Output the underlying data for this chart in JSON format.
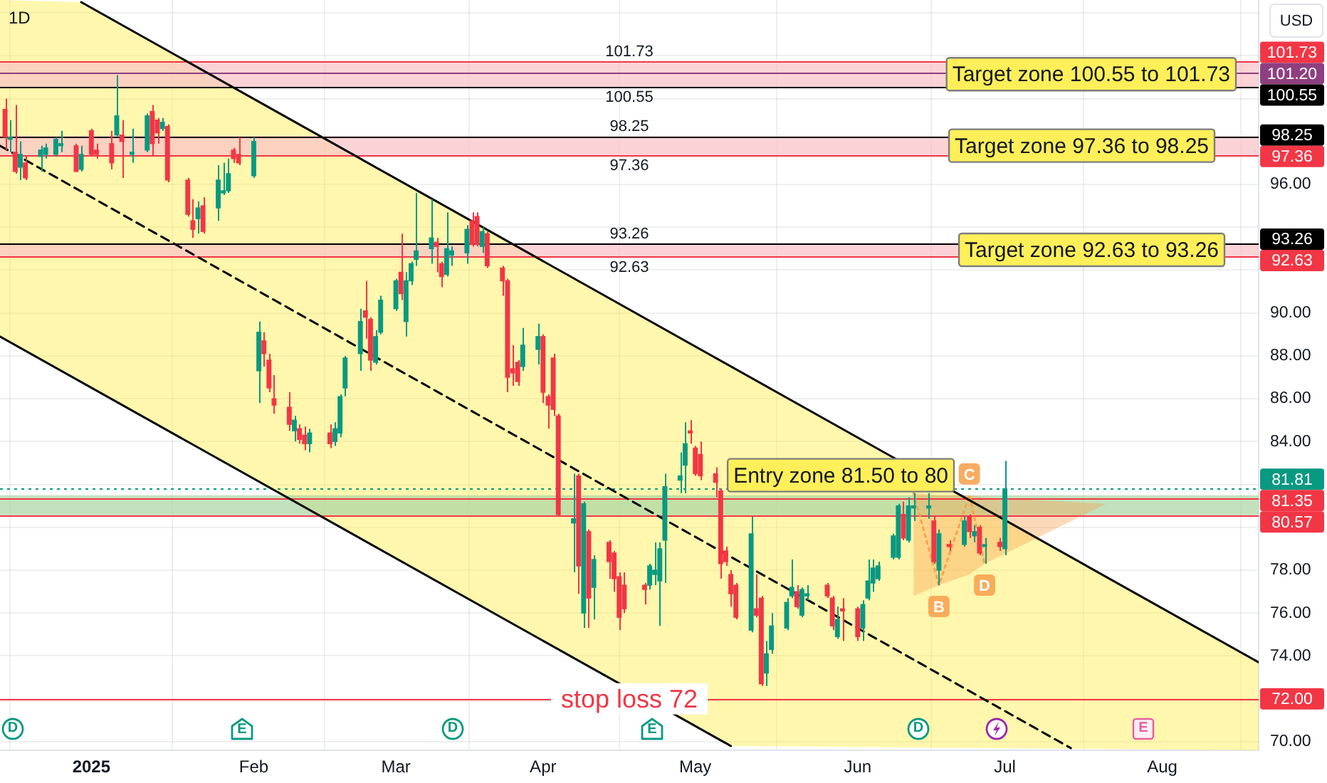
{
  "chart_data": {
    "type": "candlestick",
    "title": "1D",
    "ylabel": "USD",
    "x": [
      "2024-12-16",
      "2024-12-17",
      "2024-12-18",
      "2024-12-19",
      "2024-12-20",
      "2024-12-23",
      "2024-12-24",
      "2024-12-26",
      "2024-12-27",
      "2024-12-30",
      "2024-12-31",
      "2025-01-02",
      "2025-01-03",
      "2025-01-06",
      "2025-01-07",
      "2025-01-08",
      "2025-01-10",
      "2025-01-13",
      "2025-01-14",
      "2025-01-15",
      "2025-01-16",
      "2025-01-17",
      "2025-01-21",
      "2025-01-22",
      "2025-01-23",
      "2025-01-24",
      "2025-01-27",
      "2025-01-28",
      "2025-01-29",
      "2025-01-30",
      "2025-01-31",
      "2025-02-03",
      "2025-02-04",
      "2025-02-05",
      "2025-02-06",
      "2025-02-07",
      "2025-02-10",
      "2025-02-11",
      "2025-02-12",
      "2025-02-13",
      "2025-02-14",
      "2025-02-18",
      "2025-02-19",
      "2025-02-20",
      "2025-02-21",
      "2025-02-24",
      "2025-02-25",
      "2025-02-26",
      "2025-02-27",
      "2025-02-28",
      "2025-03-03",
      "2025-03-04",
      "2025-03-05",
      "2025-03-06",
      "2025-03-07",
      "2025-03-10",
      "2025-03-11",
      "2025-03-12",
      "2025-03-13",
      "2025-03-14",
      "2025-03-17",
      "2025-03-18",
      "2025-03-19",
      "2025-03-20",
      "2025-03-21",
      "2025-03-24",
      "2025-03-25",
      "2025-03-26",
      "2025-03-27",
      "2025-03-28",
      "2025-03-31",
      "2025-04-01",
      "2025-04-02",
      "2025-04-03",
      "2025-04-04",
      "2025-04-07",
      "2025-04-08",
      "2025-04-09",
      "2025-04-10",
      "2025-04-11",
      "2025-04-14",
      "2025-04-15",
      "2025-04-16",
      "2025-04-17",
      "2025-04-21",
      "2025-04-22",
      "2025-04-23",
      "2025-04-24",
      "2025-04-25",
      "2025-04-28",
      "2025-04-29",
      "2025-04-30",
      "2025-05-01",
      "2025-05-02",
      "2025-05-05",
      "2025-05-06",
      "2025-05-07",
      "2025-05-08",
      "2025-05-09",
      "2025-05-12",
      "2025-05-13",
      "2025-05-14",
      "2025-05-15",
      "2025-05-16",
      "2025-05-19",
      "2025-05-20",
      "2025-05-21",
      "2025-05-22",
      "2025-05-23",
      "2025-05-27",
      "2025-05-28",
      "2025-05-29",
      "2025-05-30",
      "2025-06-02",
      "2025-06-03",
      "2025-06-04",
      "2025-06-05",
      "2025-06-06",
      "2025-06-09",
      "2025-06-10",
      "2025-06-11",
      "2025-06-12",
      "2025-06-13",
      "2025-06-16",
      "2025-06-17",
      "2025-06-18",
      "2025-06-20",
      "2025-06-23",
      "2025-06-24",
      "2025-06-25",
      "2025-06-26",
      "2025-06-27",
      "2025-06-30",
      "2025-07-01"
    ],
    "ohlc": [
      [
        99.5,
        100.0,
        97.6,
        98.2
      ],
      [
        98.1,
        99.0,
        97.5,
        98.2
      ],
      [
        97.5,
        99.7,
        96.5,
        96.6
      ],
      [
        96.8,
        98.0,
        96.2,
        97.4
      ],
      [
        97.0,
        97.3,
        96.2,
        96.3
      ],
      [
        97.3,
        97.8,
        96.6,
        97.6
      ],
      [
        97.4,
        97.9,
        97.2,
        97.7
      ],
      [
        97.4,
        98.2,
        97.3,
        98.1
      ],
      [
        97.8,
        98.5,
        97.5,
        97.9
      ],
      [
        97.8,
        97.9,
        96.6,
        96.6
      ],
      [
        96.7,
        97.8,
        96.6,
        97.4
      ],
      [
        98.5,
        98.6,
        97.3,
        97.4
      ],
      [
        97.6,
        97.9,
        97.2,
        97.4
      ],
      [
        97.9,
        98.5,
        96.7,
        97.0
      ],
      [
        98.3,
        101.1,
        98.2,
        99.2
      ],
      [
        98.3,
        99.0,
        96.3,
        98.0
      ],
      [
        97.4,
        98.6,
        97.0,
        97.5
      ],
      [
        97.6,
        99.3,
        97.5,
        99.2
      ],
      [
        99.4,
        99.7,
        97.3,
        97.9
      ],
      [
        99.0,
        99.1,
        97.9,
        98.4
      ],
      [
        98.6,
        99.1,
        98.5,
        98.9
      ],
      [
        98.7,
        98.8,
        96.1,
        96.2
      ],
      [
        96.2,
        96.3,
        94.5,
        94.6
      ],
      [
        94.3,
        95.3,
        93.5,
        93.9
      ],
      [
        94.4,
        95.2,
        93.7,
        94.9
      ],
      [
        95.0,
        95.4,
        93.7,
        93.8
      ],
      [
        94.9,
        96.9,
        94.3,
        96.2
      ],
      [
        95.6,
        97.0,
        95.5,
        95.7
      ],
      [
        95.7,
        97.2,
        95.6,
        96.5
      ],
      [
        97.6,
        97.7,
        97.0,
        97.2
      ],
      [
        97.4,
        98.2,
        96.9,
        97.0
      ],
      [
        96.4,
        98.2,
        96.3,
        98.0
      ],
      [
        87.3,
        89.6,
        85.8,
        89.1
      ],
      [
        88.7,
        89.1,
        87.5,
        88.1
      ],
      [
        87.8,
        88.1,
        86.3,
        86.5
      ],
      [
        86.0,
        87.1,
        85.3,
        85.7
      ],
      [
        85.6,
        86.3,
        84.5,
        84.8
      ],
      [
        84.5,
        85.2,
        84.0,
        85.0
      ],
      [
        84.6,
        84.8,
        83.9,
        84.1
      ],
      [
        84.3,
        84.7,
        83.6,
        83.9
      ],
      [
        83.9,
        84.6,
        83.5,
        84.4
      ],
      [
        84.4,
        84.8,
        83.7,
        83.9
      ],
      [
        84.0,
        84.9,
        83.8,
        84.6
      ],
      [
        84.4,
        86.2,
        84.2,
        86.1
      ],
      [
        86.5,
        88.0,
        86.1,
        87.9
      ],
      [
        88.1,
        90.2,
        87.3,
        89.6
      ],
      [
        90.1,
        91.5,
        88.8,
        89.8
      ],
      [
        89.7,
        89.8,
        87.3,
        87.8
      ],
      [
        87.7,
        89.2,
        87.6,
        88.9
      ],
      [
        89.1,
        90.8,
        89.0,
        90.6
      ],
      [
        90.2,
        91.6,
        90.1,
        91.5
      ],
      [
        91.9,
        93.7,
        90.6,
        90.9
      ],
      [
        89.6,
        91.9,
        88.9,
        91.5
      ],
      [
        91.5,
        92.4,
        91.3,
        92.3
      ],
      [
        92.5,
        95.6,
        92.2,
        92.9
      ],
      [
        93.0,
        95.3,
        92.3,
        93.5
      ],
      [
        93.3,
        93.5,
        91.9,
        93.1
      ],
      [
        92.3,
        92.4,
        91.2,
        91.7
      ],
      [
        91.8,
        94.7,
        91.7,
        93.0
      ],
      [
        92.7,
        93.1,
        92.2,
        92.9
      ],
      [
        92.8,
        94.1,
        92.3,
        93.9
      ],
      [
        94.3,
        94.7,
        93.1,
        93.2
      ],
      [
        94.5,
        94.7,
        93.1,
        93.2
      ],
      [
        93.1,
        94.0,
        92.8,
        93.8
      ],
      [
        93.7,
        93.8,
        92.1,
        92.2
      ],
      [
        92.1,
        92.2,
        90.8,
        91.5
      ],
      [
        91.5,
        91.6,
        86.3,
        87.0
      ],
      [
        87.4,
        88.5,
        86.6,
        87.2
      ],
      [
        87.7,
        87.8,
        86.6,
        86.8
      ],
      [
        87.5,
        89.3,
        87.3,
        88.5
      ],
      [
        88.3,
        89.5,
        87.6,
        88.9
      ],
      [
        88.9,
        89.0,
        85.8,
        86.3
      ],
      [
        86.1,
        86.2,
        84.6,
        85.7
      ],
      [
        87.9,
        88.1,
        85.2,
        85.5
      ],
      [
        85.2,
        85.3,
        80.5,
        80.6
      ],
      [
        80.2,
        82.5,
        77.9,
        80.4
      ],
      [
        82.4,
        82.5,
        76.9,
        78.2
      ],
      [
        76.0,
        81.2,
        75.3,
        81.1
      ],
      [
        79.8,
        79.9,
        75.3,
        76.7
      ],
      [
        77.2,
        78.7,
        75.7,
        78.5
      ],
      [
        79.3,
        79.4,
        77.6,
        78.4
      ],
      [
        78.8,
        78.9,
        77.0,
        77.6
      ],
      [
        77.7,
        77.9,
        75.2,
        75.8
      ],
      [
        77.3,
        77.9,
        76.0,
        76.2
      ],
      [
        77.3,
        77.4,
        76.4,
        77.1
      ],
      [
        77.3,
        78.3,
        77.1,
        78.2
      ],
      [
        77.8,
        79.3,
        77.3,
        78.0
      ],
      [
        77.5,
        79.3,
        75.4,
        79.0
      ],
      [
        79.4,
        82.5,
        77.4,
        81.9
      ],
      [
        82.2,
        83.5,
        81.6,
        82.4
      ],
      [
        82.9,
        84.9,
        81.6,
        83.9
      ],
      [
        84.5,
        85.0,
        83.9,
        84.4
      ],
      [
        83.7,
        83.8,
        82.4,
        82.5
      ],
      [
        83.4,
        84.0,
        82.2,
        82.4
      ],
      [
        82.5,
        82.8,
        81.4,
        82.1
      ],
      [
        81.7,
        81.8,
        77.6,
        78.3
      ],
      [
        78.9,
        79.1,
        78.2,
        78.4
      ],
      [
        77.8,
        78.0,
        76.3,
        76.9
      ],
      [
        77.3,
        77.4,
        75.7,
        75.8
      ],
      [
        75.2,
        80.5,
        75.1,
        79.7
      ],
      [
        76.2,
        77.8,
        75.8,
        75.9
      ],
      [
        76.7,
        76.8,
        72.6,
        72.7
      ],
      [
        73.2,
        74.7,
        72.6,
        74.1
      ],
      [
        74.3,
        76.0,
        74.1,
        75.4
      ],
      [
        75.3,
        76.7,
        75.2,
        76.5
      ],
      [
        76.8,
        78.5,
        76.7,
        77.2
      ],
      [
        77.0,
        77.3,
        76.2,
        76.3
      ],
      [
        75.9,
        77.2,
        75.8,
        77.1
      ],
      [
        76.8,
        77.3,
        76.6,
        76.9
      ],
      [
        77.3,
        77.4,
        76.7,
        76.8
      ],
      [
        76.7,
        76.8,
        75.2,
        75.4
      ],
      [
        74.9,
        76.3,
        74.8,
        75.7
      ],
      [
        76.2,
        76.7,
        74.7,
        76.1
      ],
      [
        76.2,
        76.3,
        74.7,
        74.9
      ],
      [
        75.3,
        76.6,
        74.7,
        76.4
      ],
      [
        76.7,
        78.5,
        76.6,
        77.5
      ],
      [
        77.4,
        78.5,
        77.0,
        78.1
      ],
      [
        77.6,
        78.4,
        77.5,
        78.2
      ],
      [
        78.6,
        79.7,
        78.5,
        79.6
      ],
      [
        78.6,
        81.1,
        78.5,
        81.0
      ],
      [
        80.6,
        81.2,
        79.4,
        79.5
      ],
      [
        79.4,
        81.4,
        79.3,
        81.0
      ],
      [
        80.9,
        81.6,
        80.3,
        81.0
      ],
      [
        80.9,
        81.6,
        80.4,
        81.0
      ],
      [
        80.3,
        80.5,
        78.3,
        78.4
      ],
      [
        78.0,
        79.9,
        77.3,
        79.7
      ],
      [
        79.2,
        79.4,
        78.9,
        79.1
      ],
      [
        79.2,
        80.5,
        79.1,
        80.3
      ],
      [
        80.5,
        80.6,
        79.5,
        79.8
      ],
      [
        79.6,
        80.1,
        79.3,
        79.8
      ],
      [
        80.0,
        80.1,
        78.7,
        78.8
      ],
      [
        79.1,
        79.5,
        78.3,
        79.2
      ],
      [
        79.3,
        79.5,
        78.9,
        79.1
      ],
      [
        79.0,
        83.1,
        78.7,
        81.8
      ]
    ],
    "colors": [
      "#f23645",
      "#089981",
      "#f23645",
      "#089981",
      "#f23645",
      "#089981",
      "#089981",
      "#089981",
      "#089981",
      "#f23645",
      "#089981",
      "#f23645",
      "#f23645",
      "#f23645",
      "#089981",
      "#f23645",
      "#089981",
      "#089981",
      "#f23645",
      "#f23645",
      "#089981",
      "#f23645",
      "#f23645",
      "#f23645",
      "#089981",
      "#f23645",
      "#089981",
      "#089981",
      "#089981",
      "#f23645",
      "#f23645",
      "#089981",
      "#089981",
      "#f23645",
      "#f23645",
      "#f23645",
      "#f23645",
      "#089981",
      "#f23645",
      "#f23645",
      "#089981",
      "#f23645",
      "#089981",
      "#089981",
      "#089981",
      "#089981",
      "#f23645",
      "#f23645",
      "#089981",
      "#089981",
      "#089981",
      "#f23645",
      "#089981",
      "#089981",
      "#089981",
      "#089981",
      "#f23645",
      "#f23645",
      "#089981",
      "#089981",
      "#089981",
      "#f23645",
      "#f23645",
      "#089981",
      "#f23645",
      "#f23645",
      "#f23645",
      "#f23645",
      "#f23645",
      "#089981",
      "#089981",
      "#f23645",
      "#f23645",
      "#f23645",
      "#f23645",
      "#089981",
      "#f23645",
      "#089981",
      "#f23645",
      "#089981",
      "#f23645",
      "#f23645",
      "#f23645",
      "#f23645",
      "#f23645",
      "#089981",
      "#089981",
      "#089981",
      "#089981",
      "#089981",
      "#089981",
      "#f23645",
      "#f23645",
      "#f23645",
      "#f23645",
      "#f23645",
      "#f23645",
      "#f23645",
      "#f23645",
      "#089981",
      "#f23645",
      "#f23645",
      "#089981",
      "#089981",
      "#089981",
      "#089981",
      "#f23645",
      "#089981",
      "#089981",
      "#f23645",
      "#f23645",
      "#089981",
      "#f23645",
      "#f23645",
      "#089981",
      "#089981",
      "#089981",
      "#089981",
      "#089981",
      "#089981",
      "#f23645",
      "#089981",
      "#089981",
      "#089981",
      "#f23645",
      "#089981",
      "#f23645",
      "#089981",
      "#f23645",
      "#089981",
      "#f23645",
      "#089981",
      "#f23645",
      "#089981"
    ],
    "xlim": [
      "2024-12-15",
      "2025-08-20"
    ],
    "xticks": [
      {
        "value": "2025-01-02",
        "label": "2025"
      },
      {
        "value": "2025-02-03",
        "label": "Feb"
      },
      {
        "value": "2025-03-03",
        "label": "Mar"
      },
      {
        "value": "2025-04-01",
        "label": "Apr"
      },
      {
        "value": "2025-05-01",
        "label": "May"
      },
      {
        "value": "2025-06-02",
        "label": "Jun"
      },
      {
        "value": "2025-07-01",
        "label": "Jul"
      },
      {
        "value": "2025-08-01",
        "label": "Aug"
      }
    ],
    "ylim": [
      69.6,
      104.6
    ],
    "yticks": [
      {
        "value": 70,
        "label": "70.00"
      },
      {
        "value": 72,
        "label": null
      },
      {
        "value": 74,
        "label": "74.00"
      },
      {
        "value": 76,
        "label": "76.00"
      },
      {
        "value": 78,
        "label": "78.00"
      },
      {
        "value": 80,
        "label": null
      },
      {
        "value": 82,
        "label": null
      },
      {
        "value": 84,
        "label": "84.00"
      },
      {
        "value": 86,
        "label": "86.00"
      },
      {
        "value": 88,
        "label": "88.00"
      },
      {
        "value": 90,
        "label": "90.00"
      },
      {
        "value": 92,
        "label": null
      },
      {
        "value": 94,
        "label": null
      },
      {
        "value": 96,
        "label": "96.00"
      },
      {
        "value": 100,
        "label": null
      },
      {
        "value": 102,
        "label": null
      },
      {
        "value": 104,
        "label": null
      }
    ],
    "grid": true,
    "series": [
      {
        "type": "line",
        "color": "#000000",
        "x": [
          "2024-12-31",
          "2025-08-20"
        ],
        "values": [
          104.5,
          73.7
        ]
      },
      {
        "type": "line",
        "color": "#000000",
        "line_style": "dashed",
        "x": [
          "2024-12-15",
          "2025-07-14"
        ],
        "values": [
          97.8,
          69.7
        ]
      },
      {
        "type": "line",
        "color": "#000000",
        "x": [
          "2024-12-15",
          "2025-05-08"
        ],
        "values": [
          88.9,
          69.8
        ]
      },
      {
        "type": "line",
        "color": "#f7a350",
        "line_style": "dotted",
        "x": [
          "2025-06-13",
          "2025-06-18",
          "2025-06-24",
          "2025-06-27",
          "2025-07-21"
        ],
        "values": [
          81.6,
          77.3,
          81.5,
          78.3,
          null
        ],
        "lower": [
          76.8,
          77.3,
          77.8,
          78.3,
          81.1
        ],
        "upper": [
          81.6,
          81.5,
          81.5,
          81.4,
          81.1
        ]
      }
    ],
    "bands": [
      {
        "axis": "y",
        "from": 100.55,
        "to": 101.73,
        "label": "Target zone 100.55 to 101.73",
        "color": "#f9c0c6"
      },
      {
        "axis": "y",
        "from": 97.36,
        "to": 98.25,
        "label": "Target zone 97.36 to 98.25",
        "color": "#f9c0c6"
      },
      {
        "axis": "y",
        "from": 92.63,
        "to": 93.26,
        "label": "Target zone 92.63 to 93.26",
        "color": "#f9c0c6"
      },
      {
        "axis": "y",
        "from": 80.57,
        "to": 81.5,
        "label": "Entry zone 81.50 to 80",
        "color": "#a8d5a2"
      }
    ],
    "ref_lines": [
      {
        "axis": "y",
        "value": 101.73,
        "label": "101.73",
        "color": "#f23645"
      },
      {
        "axis": "y",
        "value": 101.2,
        "label": "101.20",
        "color": "#8e3f7f"
      },
      {
        "axis": "y",
        "value": 100.55,
        "label": "100.55",
        "color": "#000000"
      },
      {
        "axis": "y",
        "value": 98.25,
        "label": "98.25",
        "color": "#000000"
      },
      {
        "axis": "y",
        "value": 97.36,
        "label": "97.36",
        "color": "#f23645"
      },
      {
        "axis": "y",
        "value": 93.26,
        "label": "93.26",
        "color": "#000000"
      },
      {
        "axis": "y",
        "value": 92.63,
        "label": "92.63",
        "color": "#f23645"
      },
      {
        "axis": "y",
        "value": 81.81,
        "label": "81.81",
        "color": "#089981",
        "line_style": "dotted"
      },
      {
        "axis": "y",
        "value": 81.35,
        "label": "81.35",
        "color": "#f23645"
      },
      {
        "axis": "y",
        "value": 80.57,
        "label": "80.57",
        "color": "#f23645"
      },
      {
        "axis": "y",
        "value": 72,
        "label": "72.00",
        "color": "#f23645"
      }
    ],
    "annotations": [
      {
        "text": "101.73",
        "y": 101.73
      },
      {
        "text": "100.55",
        "y": 100.55
      },
      {
        "text": "98.25",
        "y": 98.25
      },
      {
        "text": "97.36",
        "y": 97.36
      },
      {
        "text": "93.26",
        "y": 93.26
      },
      {
        "text": "92.63",
        "y": 92.63
      },
      {
        "text": "stop loss 72",
        "y": 72
      },
      {
        "text": "B",
        "x": "2025-06-18",
        "y": 77.3
      },
      {
        "text": "C",
        "x": "2025-06-24",
        "y": 81.5
      },
      {
        "text": "D",
        "x": "2025-06-27",
        "y": 78.3
      },
      "D",
      "E",
      "D",
      "E",
      "D",
      "E"
    ]
  }
}
